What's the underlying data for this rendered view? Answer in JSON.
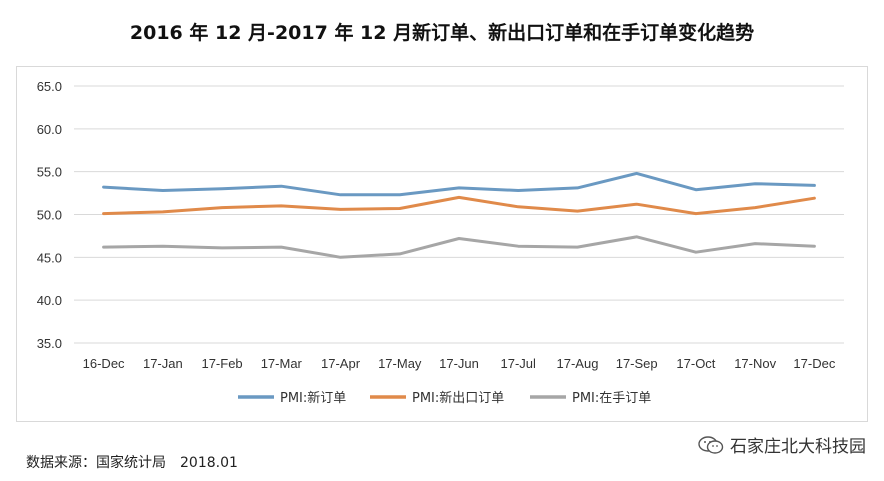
{
  "title": "2016 年 12 月-2017 年 12 月新订单、新出口订单和在手订单变化趋势",
  "source_label": "数据来源：国家统计局",
  "source_date": "2018.01",
  "brand": "石家庄北大科技园",
  "colors": {
    "series1": "#6a99c2",
    "series2": "#e08a4a",
    "series3": "#a6a6a6",
    "grid": "#d9d9d9"
  },
  "chart_data": {
    "type": "line",
    "title": "2016 年 12 月-2017 年 12 月新订单、新出口订单和在手订单变化趋势",
    "categories": [
      "16-Dec",
      "17-Jan",
      "17-Feb",
      "17-Mar",
      "17-Apr",
      "17-May",
      "17-Jun",
      "17-Jul",
      "17-Aug",
      "17-Sep",
      "17-Oct",
      "17-Nov",
      "17-Dec"
    ],
    "ylim": [
      35.0,
      65.0
    ],
    "yticks": [
      "35.0",
      "40.0",
      "45.0",
      "50.0",
      "55.0",
      "60.0",
      "65.0"
    ],
    "grid": "horizontal",
    "legend_position": "bottom",
    "series": [
      {
        "name": "PMI:新订单",
        "color": "#6a99c2",
        "values": [
          53.2,
          52.8,
          53.0,
          53.3,
          52.3,
          52.3,
          53.1,
          52.8,
          53.1,
          54.8,
          52.9,
          53.6,
          53.4
        ]
      },
      {
        "name": "PMI:新出口订单",
        "color": "#e08a4a",
        "values": [
          50.1,
          50.3,
          50.8,
          51.0,
          50.6,
          50.7,
          52.0,
          50.9,
          50.4,
          51.2,
          50.1,
          50.8,
          51.9
        ]
      },
      {
        "name": "PMI:在手订单",
        "color": "#a6a6a6",
        "values": [
          46.2,
          46.3,
          46.1,
          46.2,
          45.0,
          45.4,
          47.2,
          46.3,
          46.2,
          47.4,
          45.6,
          46.6,
          46.3
        ]
      }
    ]
  }
}
